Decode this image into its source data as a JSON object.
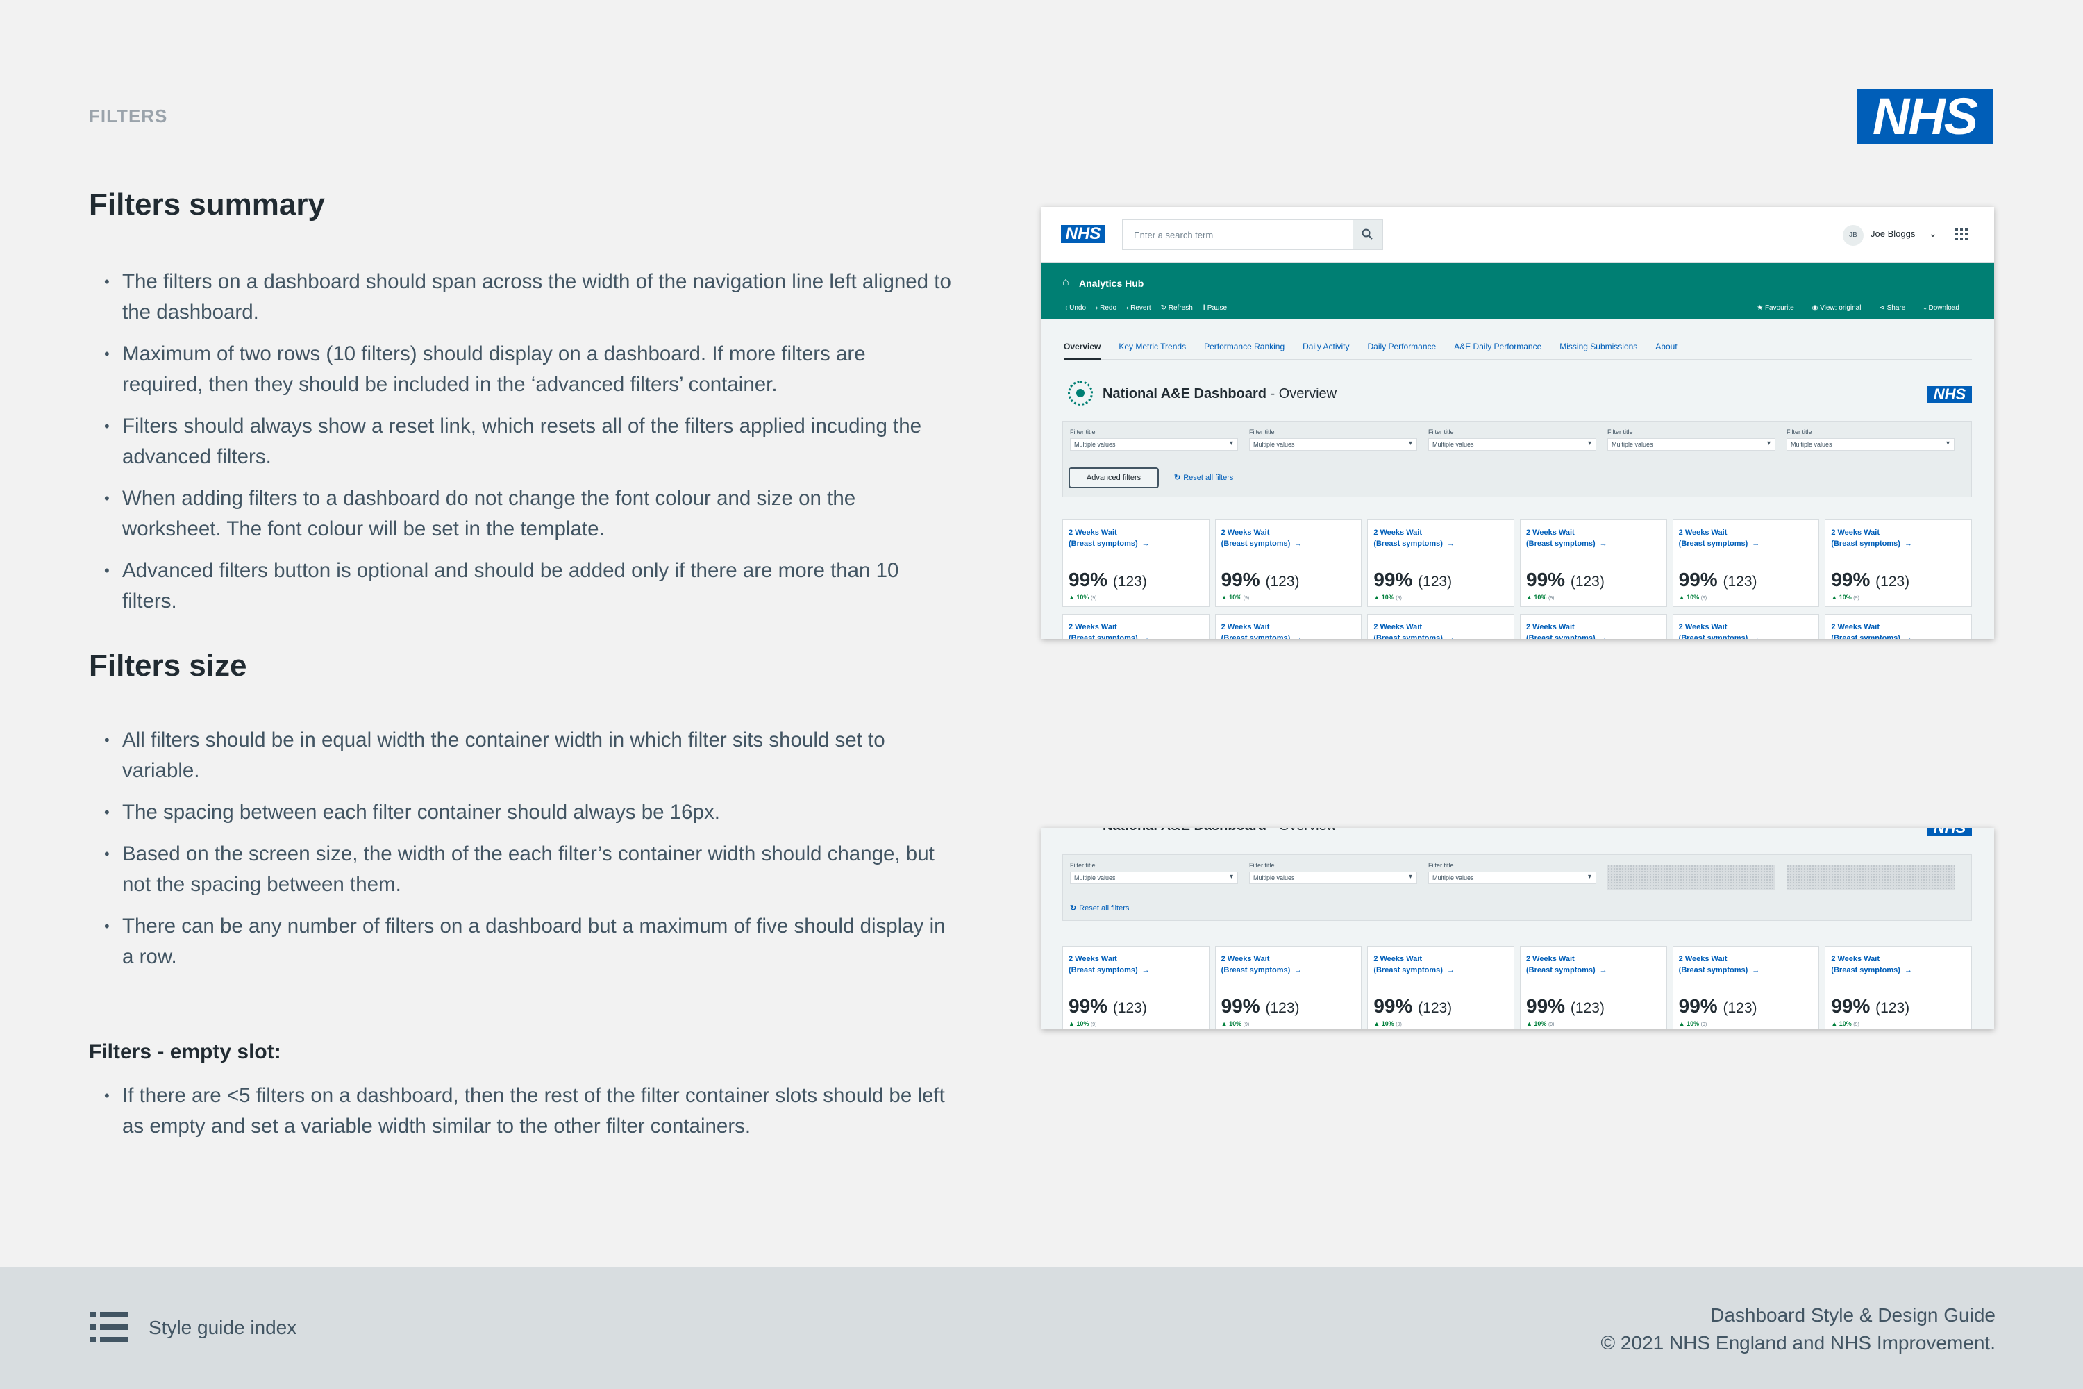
{
  "page": {
    "section_label": "FILTERS",
    "logo_text": "NHS"
  },
  "summary": {
    "heading": "Filters summary",
    "bullets": [
      "The filters on a dashboard should span across the width of the navigation line left aligned to the dashboard.",
      "Maximum of two rows (10 filters) should display on a dashboard. If more filters are required, then they should be included in the ‘advanced filters’ container.",
      "Filters should always show a reset link, which resets all of the filters applied incuding the advanced filters.",
      "When adding filters to a dashboard do not change the font colour and size on the worksheet. The font colour will be set in the template.",
      "Advanced filters button is optional and should be added only if there are more than 10 filters."
    ]
  },
  "size": {
    "heading": "Filters size",
    "bullets": [
      "All filters should be in equal width the container width in which filter sits should set to variable.",
      "The spacing between each filter container should always be 16px.",
      "Based on the screen size, the width of the each filter’s container width should change, but not the spacing between them.",
      "There can be any number of filters on a dashboard but a maximum of five should display in a row."
    ]
  },
  "empty_slot": {
    "heading": "Filters - empty slot:",
    "bullets": [
      "If there are <5 filters on a dashboard, then the rest of the filter container slots should be left as empty and set a variable width similar to the other filter containers."
    ]
  },
  "mockup": {
    "logo_text": "NHS",
    "search_placeholder": "Enter a search term",
    "user_initials": "JB",
    "user_name": "Joe Bloggs",
    "hub_title": "Analytics Hub",
    "toolbar_left": [
      "Undo",
      "Redo",
      "Revert",
      "Refresh",
      "Pause"
    ],
    "toolbar_right": [
      "Favourite",
      "View: original",
      "Share",
      "Download"
    ],
    "tabs": [
      "Overview",
      "Key Metric Trends",
      "Performance Ranking",
      "Daily Activity",
      "Daily Performance",
      "A&E Daily Performance",
      "Missing Submissions",
      "About"
    ],
    "dashboard_title": "National A&E Dashboard",
    "dashboard_subtitle": " - Overview",
    "filter_label": "Filter title",
    "filter_value": "Multiple values",
    "advanced_filters": "Advanced filters",
    "reset_all": "Reset all filters",
    "card": {
      "title_line1": "2 Weeks Wait",
      "title_line2": "(Breast symptoms)",
      "value": "99%",
      "count": "(123)",
      "change": "10%",
      "change_count": "(9)"
    }
  },
  "footer": {
    "index_label": "Style guide index",
    "guide_title": "Dashboard Style & Design Guide",
    "copyright": "© 2021 NHS England and NHS Improvement."
  },
  "colors": {
    "nhs_blue": "#005eb8",
    "hub_green": "#007f73",
    "positive_green": "#007f3b"
  }
}
